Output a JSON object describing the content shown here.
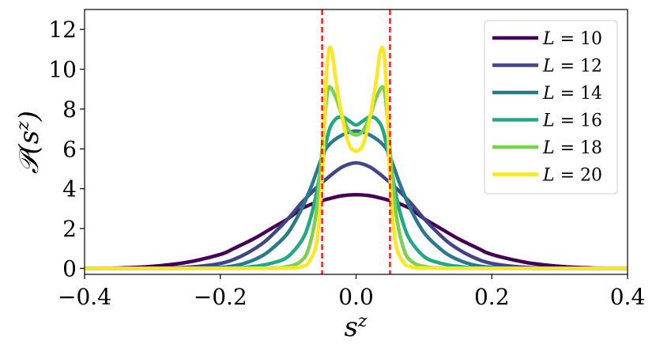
{
  "chart_data": {
    "type": "line",
    "xlabel": "s^z",
    "ylabel": "𝒫(s^z)",
    "xlim": [
      -0.4,
      0.4
    ],
    "ylim": [
      -0.3,
      13.0
    ],
    "xticks": [
      -0.4,
      -0.2,
      0.0,
      0.2,
      0.4
    ],
    "xtick_labels": [
      "−0.4",
      "−0.2",
      "0.0",
      "0.2",
      "0.4"
    ],
    "yticks": [
      0,
      2,
      4,
      6,
      8,
      10,
      12
    ],
    "ytick_labels": [
      "0",
      "2",
      "4",
      "6",
      "8",
      "10",
      "12"
    ],
    "reference_lines": [
      {
        "x": -0.05,
        "color": "#ff0000",
        "style": "dashed"
      },
      {
        "x": 0.05,
        "color": "#ff0000",
        "style": "dashed"
      }
    ],
    "legend_position": "top-right",
    "grid": false,
    "series": [
      {
        "name": "L = 10",
        "label_var": "L",
        "label_val": "10",
        "color": "#440154",
        "x": [
          -0.4,
          -0.35,
          -0.3,
          -0.25,
          -0.2,
          -0.18,
          -0.15,
          -0.12,
          -0.1,
          -0.08,
          -0.06,
          -0.05,
          -0.04,
          -0.02,
          0,
          0.02,
          0.04,
          0.05,
          0.06,
          0.08,
          0.1,
          0.12,
          0.15,
          0.18,
          0.2,
          0.25,
          0.3,
          0.35,
          0.4
        ],
        "y": [
          0,
          0.02,
          0.1,
          0.3,
          0.7,
          1.0,
          1.5,
          2.1,
          2.5,
          3.0,
          3.3,
          3.4,
          3.5,
          3.65,
          3.7,
          3.65,
          3.5,
          3.4,
          3.3,
          3.0,
          2.5,
          2.1,
          1.5,
          1.0,
          0.7,
          0.3,
          0.1,
          0.02,
          0
        ]
      },
      {
        "name": "L = 12",
        "label_var": "L",
        "label_val": "12",
        "color": "#414487",
        "x": [
          -0.4,
          -0.3,
          -0.25,
          -0.2,
          -0.17,
          -0.14,
          -0.12,
          -0.1,
          -0.08,
          -0.06,
          -0.04,
          -0.02,
          0,
          0.02,
          0.04,
          0.06,
          0.08,
          0.1,
          0.12,
          0.14,
          0.17,
          0.2,
          0.25,
          0.3,
          0.4
        ],
        "y": [
          0,
          0.01,
          0.05,
          0.25,
          0.6,
          1.2,
          1.8,
          2.5,
          3.3,
          4.0,
          4.6,
          5.1,
          5.3,
          5.1,
          4.6,
          4.0,
          3.3,
          2.5,
          1.8,
          1.2,
          0.6,
          0.25,
          0.05,
          0.01,
          0
        ]
      },
      {
        "name": "L = 14",
        "label_var": "L",
        "label_val": "14",
        "color": "#2a788e",
        "x": [
          -0.4,
          -0.25,
          -0.2,
          -0.17,
          -0.14,
          -0.12,
          -0.1,
          -0.08,
          -0.065,
          -0.05,
          -0.04,
          -0.02,
          0,
          0.02,
          0.04,
          0.05,
          0.065,
          0.08,
          0.1,
          0.12,
          0.14,
          0.17,
          0.2,
          0.25,
          0.4
        ],
        "y": [
          0,
          0.01,
          0.05,
          0.2,
          0.6,
          1.1,
          1.8,
          3.0,
          4.2,
          5.6,
          6.2,
          6.7,
          6.9,
          6.7,
          6.2,
          5.6,
          4.2,
          3.0,
          1.8,
          1.1,
          0.6,
          0.2,
          0.05,
          0.01,
          0
        ]
      },
      {
        "name": "L = 16",
        "label_var": "L",
        "label_val": "16",
        "color": "#22a884",
        "x": [
          -0.4,
          -0.2,
          -0.15,
          -0.12,
          -0.1,
          -0.08,
          -0.07,
          -0.06,
          -0.05,
          -0.04,
          -0.03,
          -0.02,
          -0.01,
          0,
          0.01,
          0.02,
          0.03,
          0.04,
          0.05,
          0.06,
          0.07,
          0.08,
          0.1,
          0.12,
          0.15,
          0.2,
          0.4
        ],
        "y": [
          0,
          0.01,
          0.1,
          0.3,
          0.6,
          1.4,
          2.2,
          3.5,
          5.3,
          6.9,
          7.5,
          7.6,
          7.4,
          7.2,
          7.4,
          7.6,
          7.5,
          6.9,
          5.3,
          3.5,
          2.2,
          1.4,
          0.6,
          0.3,
          0.1,
          0.01,
          0
        ]
      },
      {
        "name": "L = 18",
        "label_var": "L",
        "label_val": "18",
        "color": "#7ad151",
        "x": [
          -0.4,
          -0.15,
          -0.1,
          -0.08,
          -0.07,
          -0.06,
          -0.055,
          -0.05,
          -0.045,
          -0.04,
          -0.03,
          -0.02,
          -0.01,
          0,
          0.01,
          0.02,
          0.03,
          0.04,
          0.045,
          0.05,
          0.055,
          0.06,
          0.07,
          0.08,
          0.1,
          0.15,
          0.4
        ],
        "y": [
          0,
          0.01,
          0.1,
          0.4,
          1.0,
          2.5,
          4.0,
          6.0,
          8.0,
          9.1,
          8.6,
          7.6,
          6.9,
          6.7,
          6.9,
          7.6,
          8.6,
          9.1,
          8.0,
          6.0,
          4.0,
          2.5,
          1.0,
          0.4,
          0.1,
          0.01,
          0
        ]
      },
      {
        "name": "L = 20",
        "label_var": "L",
        "label_val": "20",
        "color": "#fde725",
        "x": [
          -0.4,
          -0.12,
          -0.08,
          -0.07,
          -0.06,
          -0.055,
          -0.05,
          -0.047,
          -0.044,
          -0.04,
          -0.035,
          -0.03,
          -0.02,
          -0.01,
          0,
          0.01,
          0.02,
          0.03,
          0.035,
          0.04,
          0.044,
          0.047,
          0.05,
          0.055,
          0.06,
          0.07,
          0.08,
          0.12,
          0.4
        ],
        "y": [
          0,
          0.01,
          0.1,
          0.3,
          1.0,
          2.2,
          4.5,
          7.0,
          9.5,
          11.0,
          10.8,
          9.5,
          7.5,
          6.2,
          5.9,
          6.2,
          7.5,
          9.5,
          10.8,
          11.0,
          9.5,
          7.0,
          4.5,
          2.2,
          1.0,
          0.3,
          0.1,
          0.01,
          0
        ]
      }
    ]
  }
}
